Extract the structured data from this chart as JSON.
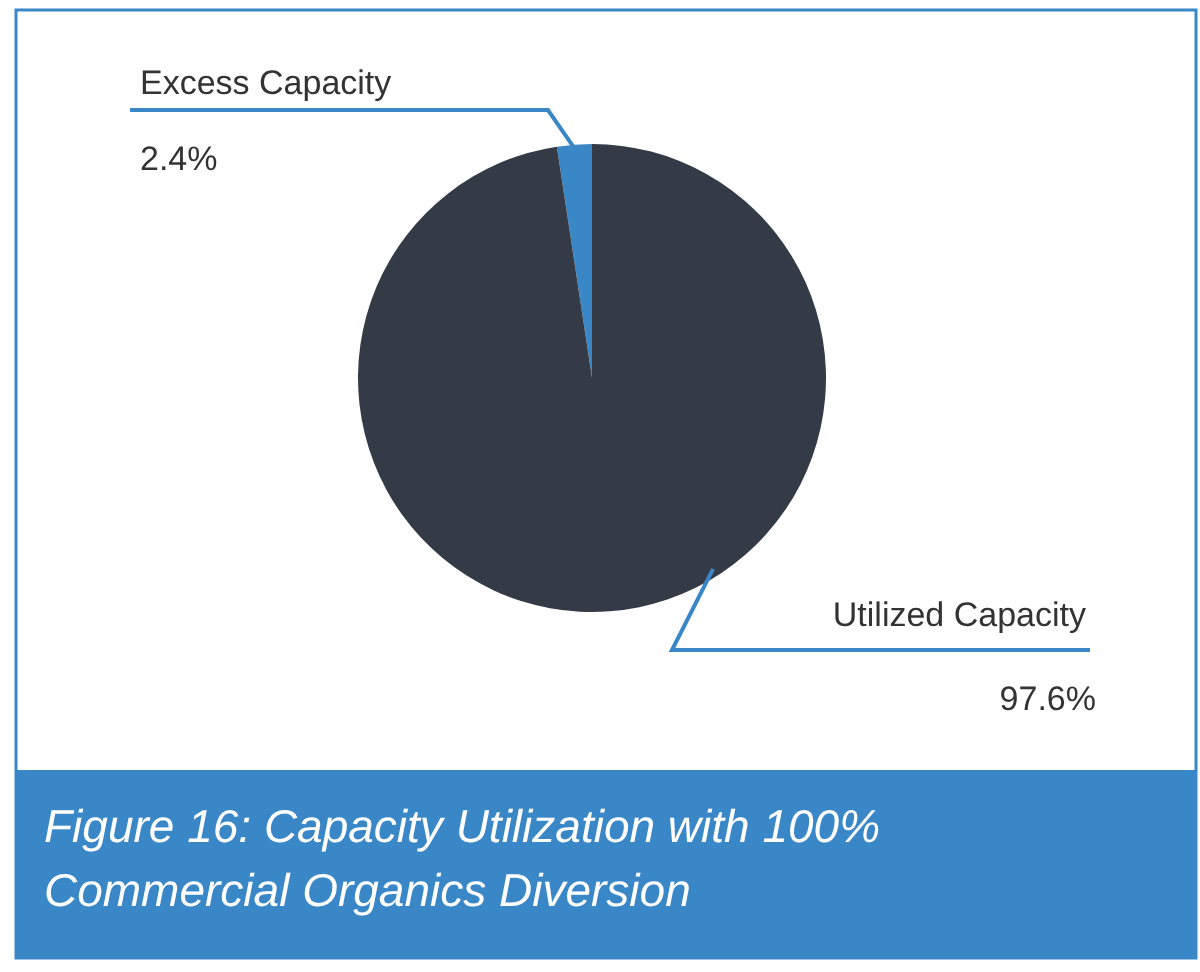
{
  "chart_data": {
    "type": "pie",
    "title": "Figure 16: Capacity Utilization with 100% Commercial Organics Diversion",
    "categories": [
      "Excess Capacity",
      "Utilized Capacity"
    ],
    "values": [
      2.4,
      97.6
    ],
    "colors": [
      "#3a87c8",
      "#343a46"
    ],
    "value_labels": [
      "2.4%",
      "97.6%"
    ]
  }
}
